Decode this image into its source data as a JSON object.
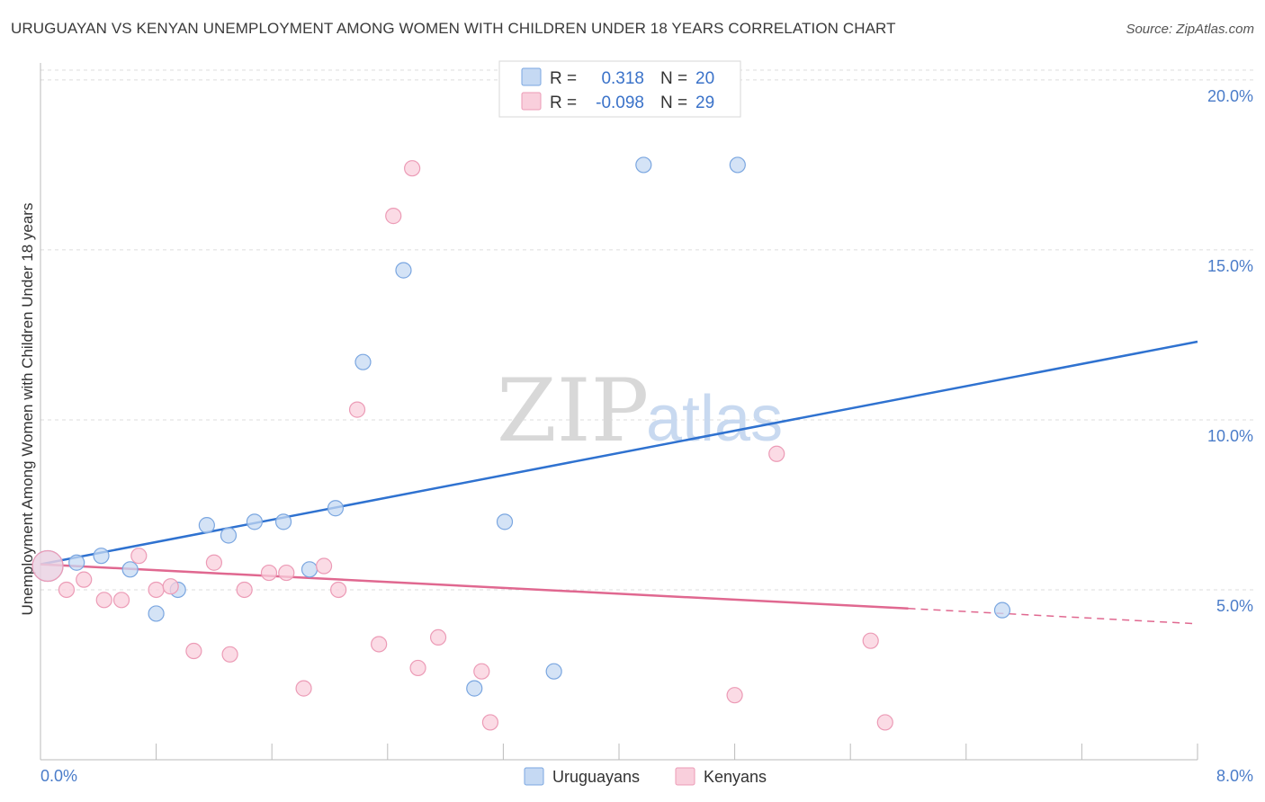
{
  "title": "URUGUAYAN VS KENYAN UNEMPLOYMENT AMONG WOMEN WITH CHILDREN UNDER 18 YEARS CORRELATION CHART",
  "source": "Source: ZipAtlas.com",
  "watermark": {
    "zip": "ZIP",
    "atlas": "atlas"
  },
  "colors": {
    "uruguayans_fill": "#c5d9f3",
    "uruguayans_stroke": "#7aa6e0",
    "uruguayans_line": "#2f72d0",
    "kenyans_fill": "#f9cfdc",
    "kenyans_stroke": "#ec9bb6",
    "kenyans_line": "#e06890",
    "grid": "#dddddd"
  },
  "legend": {
    "rows": [
      {
        "r_label": "R =",
        "r_value": "0.318",
        "n_label": "N =",
        "n_value": "20"
      },
      {
        "r_label": "R =",
        "r_value": "-0.098",
        "n_label": "N =",
        "n_value": "29"
      }
    ]
  },
  "bottom_legend": [
    "Uruguayans",
    "Kenyans"
  ],
  "chart_data": {
    "type": "scatter",
    "title": "URUGUAYAN VS KENYAN UNEMPLOYMENT AMONG WOMEN WITH CHILDREN UNDER 18 YEARS CORRELATION CHART",
    "xlabel": "",
    "ylabel": "Unemployment Among Women with Children Under 18 years",
    "xlim": [
      0,
      8
    ],
    "ylim": [
      0,
      20.5
    ],
    "x_tick_labels": [
      "0.0%",
      "8.0%"
    ],
    "y_ticks": [
      5,
      10,
      15,
      20
    ],
    "y_tick_labels": [
      "5.0%",
      "10.0%",
      "15.0%",
      "20.0%"
    ],
    "grid": true,
    "series": [
      {
        "name": "Uruguayans",
        "r": 0.318,
        "n": 20,
        "points": [
          {
            "x": 0.05,
            "y": 5.7,
            "big": true
          },
          {
            "x": 0.25,
            "y": 5.8
          },
          {
            "x": 0.42,
            "y": 6.0
          },
          {
            "x": 0.62,
            "y": 5.6
          },
          {
            "x": 0.8,
            "y": 4.3
          },
          {
            "x": 0.95,
            "y": 5.0
          },
          {
            "x": 1.15,
            "y": 6.9
          },
          {
            "x": 1.3,
            "y": 6.6
          },
          {
            "x": 1.48,
            "y": 7.0
          },
          {
            "x": 1.68,
            "y": 7.0
          },
          {
            "x": 1.86,
            "y": 5.6
          },
          {
            "x": 2.04,
            "y": 7.4
          },
          {
            "x": 2.23,
            "y": 11.7
          },
          {
            "x": 2.51,
            "y": 14.4
          },
          {
            "x": 3.0,
            "y": 2.1
          },
          {
            "x": 3.21,
            "y": 7.0
          },
          {
            "x": 3.55,
            "y": 2.6
          },
          {
            "x": 4.17,
            "y": 17.5
          },
          {
            "x": 4.82,
            "y": 17.5
          },
          {
            "x": 6.65,
            "y": 4.4
          }
        ],
        "trend": {
          "x1": 0,
          "y1": 5.75,
          "x2": 8,
          "y2": 12.3
        }
      },
      {
        "name": "Kenyans",
        "r": -0.098,
        "n": 29,
        "points": [
          {
            "x": 0.05,
            "y": 5.7,
            "big": true
          },
          {
            "x": 0.18,
            "y": 5.0
          },
          {
            "x": 0.3,
            "y": 5.3
          },
          {
            "x": 0.44,
            "y": 4.7
          },
          {
            "x": 0.56,
            "y": 4.7
          },
          {
            "x": 0.68,
            "y": 6.0
          },
          {
            "x": 0.8,
            "y": 5.0
          },
          {
            "x": 0.9,
            "y": 5.1
          },
          {
            "x": 1.06,
            "y": 3.2
          },
          {
            "x": 1.2,
            "y": 5.8
          },
          {
            "x": 1.31,
            "y": 3.1
          },
          {
            "x": 1.41,
            "y": 5.0
          },
          {
            "x": 1.58,
            "y": 5.5
          },
          {
            "x": 1.7,
            "y": 5.5
          },
          {
            "x": 1.82,
            "y": 2.1
          },
          {
            "x": 1.96,
            "y": 5.7
          },
          {
            "x": 2.06,
            "y": 5.0
          },
          {
            "x": 2.19,
            "y": 10.3
          },
          {
            "x": 2.34,
            "y": 3.4
          },
          {
            "x": 2.44,
            "y": 16.0
          },
          {
            "x": 2.57,
            "y": 17.4
          },
          {
            "x": 2.61,
            "y": 2.7
          },
          {
            "x": 2.75,
            "y": 3.6
          },
          {
            "x": 3.05,
            "y": 2.6
          },
          {
            "x": 3.11,
            "y": 1.1
          },
          {
            "x": 4.8,
            "y": 1.9
          },
          {
            "x": 5.09,
            "y": 9.0
          },
          {
            "x": 5.74,
            "y": 3.5
          },
          {
            "x": 5.84,
            "y": 1.1
          }
        ],
        "trend": {
          "x1": 0,
          "y1": 5.75,
          "x2": 6.0,
          "y2": 4.45
        },
        "trend_dashed": {
          "x1": 6.0,
          "y1": 4.45,
          "x2": 8,
          "y2": 4.0
        }
      }
    ]
  }
}
